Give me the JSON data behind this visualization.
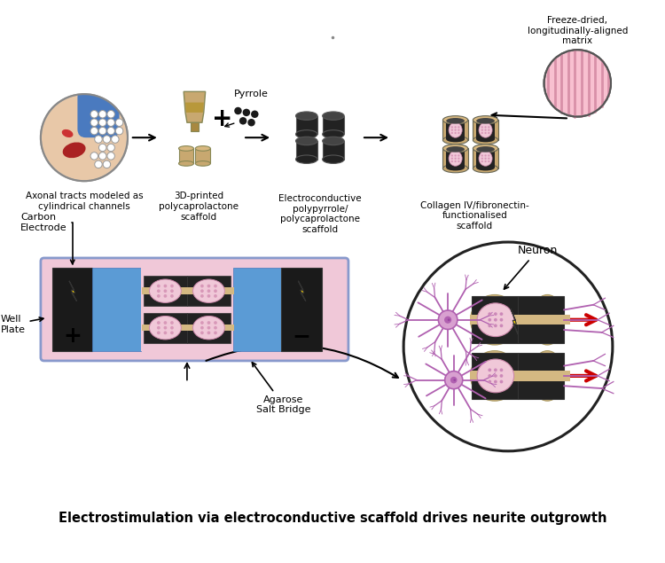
{
  "title": "Electrostimulation via electroconductive scaffold drives neurite outgrowth",
  "title_fontsize": 10.5,
  "title_fontweight": "bold",
  "bg_color": "#ffffff",
  "label1": "Axonal tracts modeled as\ncylindrical channels",
  "label2": "3D-printed\npolycaprolactone\nscaffold",
  "label3": "Electroconductive\npolypyrrole/\npolycaprolactone\nscaffold",
  "label4": "Collagen IV/fibronectin-\nfunctionalised\nscaffold",
  "label_freeze": "Freeze-dried,\nlongitudinally-aligned\nmatrix",
  "label_carbon": "Carbon\nElectrode",
  "label_well": "Well\nPlate",
  "label_agarose": "Agarose\nSalt Bridge",
  "label_neuron": "Neuron",
  "label_pyrrole": "Pyrrole",
  "color_pink_plate": "#f0c8d8",
  "color_blue_agarose": "#5b9bd5",
  "color_black": "#1a1a1a",
  "color_tan": "#c8a87a",
  "color_tan_light": "#e8d0a8",
  "color_red_arrow": "#cc0000",
  "color_yellow": "#ffd700",
  "color_neuron": "#c878c0",
  "color_neuron_light": "#dba8d8",
  "color_pink_scaffold": "#e8a8c8",
  "color_pink_scaffold_light": "#f0c8d8",
  "color_brain_bg": "#e8c8a8",
  "color_blue_brain": "#4a7abf",
  "color_red_brain": "#aa2222",
  "scaffold_black": "#222222",
  "scaffold_beige": "#d4b882"
}
